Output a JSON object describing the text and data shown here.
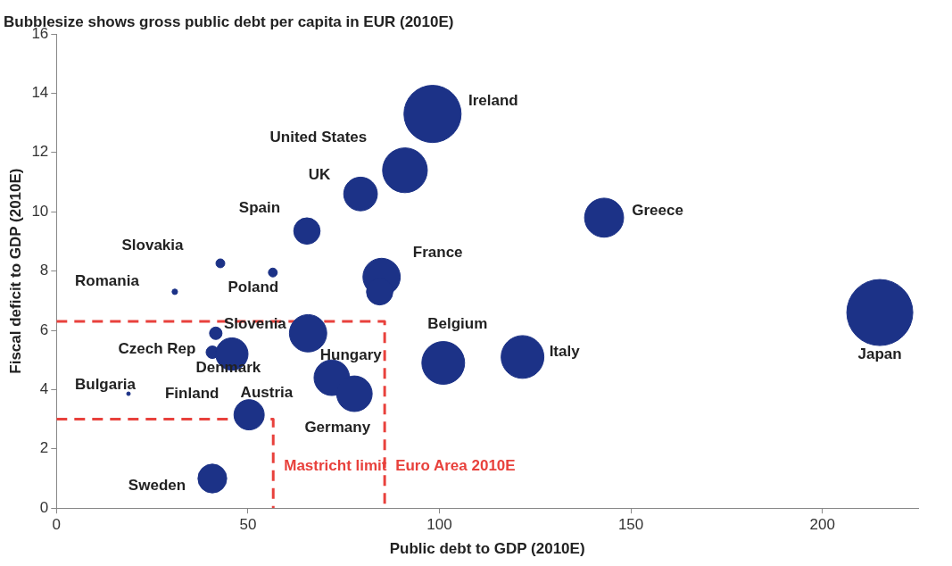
{
  "chart_data": {
    "type": "bubble",
    "title": "Bubblesize shows gross public debt per capita in EUR (2010E)",
    "xlabel": "Public debt to GDP (2010E)",
    "ylabel": "Fiscal deficit to GDP (2010E)",
    "xlim": [
      0,
      225
    ],
    "xticks": [
      0,
      50,
      100,
      150,
      200
    ],
    "ylim": [
      0,
      16
    ],
    "yticks": [
      0,
      2,
      4,
      6,
      8,
      10,
      12,
      14,
      16
    ],
    "grid": false,
    "legend": false,
    "series": [
      {
        "color": "#1c3287",
        "x": [
          98.2,
          91,
          79.4,
          65.4,
          143,
          84.9,
          84.4,
          42.8,
          56.5,
          30.9,
          41.6,
          40.7,
          45.8,
          65.7,
          101,
          121.7,
          215,
          71.9,
          77.8,
          50.3,
          18.8,
          40.7
        ],
        "values": [
          13.3,
          11.4,
          10.6,
          9.35,
          9.8,
          7.8,
          7.3,
          8.26,
          7.95,
          7.3,
          5.9,
          5.26,
          5.2,
          5.9,
          4.9,
          5.1,
          6.6,
          4.4,
          3.86,
          3.15,
          3.86,
          1.0
        ],
        "sizes": [
          0.75,
          0.46,
          0.26,
          0.16,
          0.35,
          0.32,
          0.16,
          0.018,
          0.018,
          0.007,
          0.036,
          0.036,
          0.24,
          0.32,
          0.42,
          0.42,
          1,
          0.29,
          0.29,
          0.21,
          0.003,
          0.19
        ]
      },
      {
        "type": "line",
        "name": "Mastricht limit",
        "color": "#e8413c",
        "line_style": "dashed",
        "marker": "none",
        "x": [
          0,
          56.6,
          56.6
        ],
        "values": [
          3,
          3,
          0
        ]
      },
      {
        "type": "line",
        "name": "Euro Area 2010E",
        "color": "#e8413c",
        "line_style": "dashed",
        "marker": "none",
        "x": [
          0,
          85.7,
          85.7
        ],
        "values": [
          6.3,
          6.3,
          0
        ]
      }
    ],
    "annotations": [
      {
        "text": "Ireland",
        "x": 98.2,
        "y": 13.3
      },
      {
        "text": "United States",
        "x": 91,
        "y": 11.4
      },
      {
        "text": "UK",
        "x": 79.4,
        "y": 10.6
      },
      {
        "text": "Spain",
        "x": 65.4,
        "y": 9.35
      },
      {
        "text": "Greece",
        "x": 143,
        "y": 9.8
      },
      {
        "text": "France",
        "x": 84.9,
        "y": 7.8
      },
      {
        "text": "Slovakia",
        "x": 42.8,
        "y": 8.26
      },
      {
        "text": "Romania",
        "x": 30.9,
        "y": 7.3
      },
      {
        "text": "Poland",
        "x": 56.5,
        "y": 7.95
      },
      {
        "text": "Slovenia",
        "x": 41.6,
        "y": 5.9
      },
      {
        "text": "Czech Rep",
        "x": 40.7,
        "y": 5.26
      },
      {
        "text": "Denmark",
        "x": 45.8,
        "y": 5.2
      },
      {
        "text": "Belgium",
        "x": 101,
        "y": 4.9
      },
      {
        "text": "Italy",
        "x": 121.7,
        "y": 5.1
      },
      {
        "text": "Japan",
        "x": 215,
        "y": 6.6
      },
      {
        "text": "Hungary",
        "x": 65.7,
        "y": 5.9
      },
      {
        "text": "Bulgaria",
        "x": 18.8,
        "y": 3.86
      },
      {
        "text": "Finland",
        "x": 50.3,
        "y": 3.15
      },
      {
        "text": "Austria",
        "x": 71.9,
        "y": 4.4
      },
      {
        "text": "Germany",
        "x": 77.8,
        "y": 3.86
      },
      {
        "text": "Sweden",
        "x": 40.7,
        "y": 1.0
      }
    ]
  }
}
